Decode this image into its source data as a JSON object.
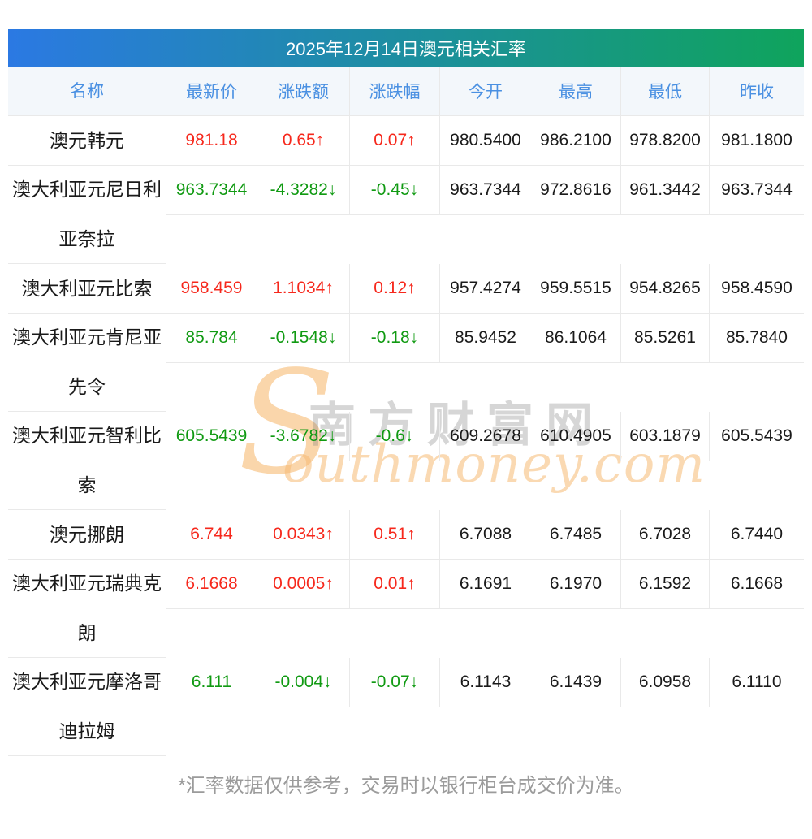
{
  "title": "2025年12月14日澳元相关汇率",
  "columns": [
    "名称",
    "最新价",
    "涨跌额",
    "涨跌幅",
    "今开",
    "最高",
    "最低",
    "昨收"
  ],
  "rows": [
    {
      "name": "澳元韩元",
      "dir": "up",
      "latest": "981.18",
      "change": "0.65↑",
      "pct": "0.07↑",
      "open": "980.5400",
      "high": "986.2100",
      "low": "978.8200",
      "prev": "981.1800"
    },
    {
      "name": "澳大利亚元尼日利亚奈拉",
      "dir": "down",
      "latest": "963.7344",
      "change": "-4.3282↓",
      "pct": "-0.45↓",
      "open": "963.7344",
      "high": "972.8616",
      "low": "961.3442",
      "prev": "963.7344"
    },
    {
      "name": "澳大利亚元比索",
      "dir": "up",
      "latest": "958.459",
      "change": "1.1034↑",
      "pct": "0.12↑",
      "open": "957.4274",
      "high": "959.5515",
      "low": "954.8265",
      "prev": "958.4590"
    },
    {
      "name": "澳大利亚元肯尼亚先令",
      "dir": "down",
      "latest": "85.784",
      "change": "-0.1548↓",
      "pct": "-0.18↓",
      "open": "85.9452",
      "high": "86.1064",
      "low": "85.5261",
      "prev": "85.7840"
    },
    {
      "name": "澳大利亚元智利比索",
      "dir": "down",
      "latest": "605.5439",
      "change": "-3.6782↓",
      "pct": "-0.6↓",
      "open": "609.2678",
      "high": "610.4905",
      "low": "603.1879",
      "prev": "605.5439"
    },
    {
      "name": "澳元挪朗",
      "dir": "up",
      "latest": "6.744",
      "change": "0.0343↑",
      "pct": "0.51↑",
      "open": "6.7088",
      "high": "6.7485",
      "low": "6.7028",
      "prev": "6.7440"
    },
    {
      "name": "澳大利亚元瑞典克朗",
      "dir": "up",
      "latest": "6.1668",
      "change": "0.0005↑",
      "pct": "0.01↑",
      "open": "6.1691",
      "high": "6.1970",
      "low": "6.1592",
      "prev": "6.1668"
    },
    {
      "name": "澳大利亚元摩洛哥迪拉姆",
      "dir": "down",
      "latest": "6.111",
      "change": "-0.004↓",
      "pct": "-0.07↓",
      "open": "6.1143",
      "high": "6.1439",
      "low": "6.0958",
      "prev": "6.1110"
    }
  ],
  "watermark": {
    "cn": "南方财富网",
    "s": "S",
    "script": "outhmoney.com"
  },
  "footer": "*汇率数据仅供参考，交易时以银行柜台成交价为准。",
  "colors": {
    "up": "#f6281c",
    "down": "#109a12",
    "header_text": "#4a90e2",
    "title_gradient_left": "#2b79e3",
    "title_gradient_right": "#0fa45c",
    "header_bg": "#f3f7fb",
    "border": "#e9e9e9"
  }
}
